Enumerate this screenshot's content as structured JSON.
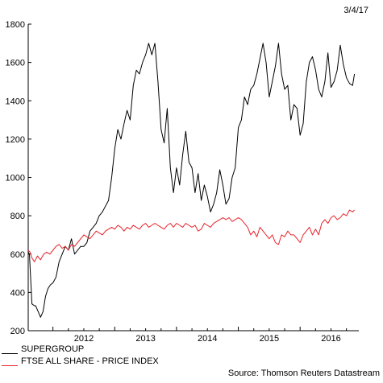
{
  "date_label": "3/4/17",
  "source_label": "Source: Thomson Reuters Datastream",
  "chart_data": {
    "type": "line",
    "title": "",
    "xlabel": "",
    "ylabel": "",
    "x_ticks": [
      "2012",
      "2013",
      "2014",
      "2015",
      "2016"
    ],
    "y_ticks": [
      200,
      400,
      600,
      800,
      1000,
      1200,
      1400,
      1600,
      1800
    ],
    "xlim": [
      2011.6,
      2016.95
    ],
    "ylim": [
      200,
      1800
    ],
    "grid": false,
    "legend_position": "bottom-left",
    "series": [
      {
        "name": "SUPERGROUP",
        "color": "#000000",
        "x": [
          2011.6,
          2011.62,
          2011.66,
          2011.7,
          2011.72,
          2011.76,
          2011.8,
          2011.84,
          2011.88,
          2011.92,
          2011.96,
          2012.0,
          2012.05,
          2012.1,
          2012.15,
          2012.2,
          2012.25,
          2012.3,
          2012.35,
          2012.4,
          2012.45,
          2012.5,
          2012.55,
          2012.6,
          2012.65,
          2012.7,
          2012.75,
          2012.8,
          2012.85,
          2012.9,
          2012.95,
          2013.0,
          2013.05,
          2013.1,
          2013.15,
          2013.2,
          2013.25,
          2013.3,
          2013.35,
          2013.4,
          2013.45,
          2013.5,
          2013.55,
          2013.6,
          2013.65,
          2013.7,
          2013.75,
          2013.8,
          2013.85,
          2013.9,
          2013.95,
          2014.0,
          2014.05,
          2014.1,
          2014.15,
          2014.2,
          2014.25,
          2014.3,
          2014.35,
          2014.4,
          2014.45,
          2014.5,
          2014.55,
          2014.6,
          2014.65,
          2014.7,
          2014.75,
          2014.8,
          2014.85,
          2014.9,
          2014.95,
          2015.0,
          2015.05,
          2015.1,
          2015.15,
          2015.2,
          2015.25,
          2015.3,
          2015.35,
          2015.4,
          2015.45,
          2015.5,
          2015.55,
          2015.6,
          2015.65,
          2015.7,
          2015.75,
          2015.8,
          2015.85,
          2015.9,
          2015.95,
          2016.0,
          2016.05,
          2016.1,
          2016.15,
          2016.2,
          2016.25,
          2016.3,
          2016.35,
          2016.4,
          2016.45,
          2016.5,
          2016.55,
          2016.6,
          2016.65,
          2016.7,
          2016.75,
          2016.8,
          2016.85,
          2016.88
        ],
        "y": [
          610,
          600,
          340,
          330,
          330,
          300,
          270,
          300,
          380,
          420,
          440,
          450,
          480,
          560,
          600,
          640,
          620,
          680,
          600,
          620,
          640,
          640,
          660,
          720,
          740,
          760,
          800,
          820,
          850,
          880,
          1000,
          1150,
          1250,
          1200,
          1280,
          1350,
          1300,
          1480,
          1560,
          1540,
          1600,
          1640,
          1700,
          1640,
          1700,
          1500,
          1250,
          1180,
          1360,
          1050,
          920,
          1050,
          960,
          1120,
          1240,
          1080,
          1050,
          920,
          1020,
          880,
          960,
          900,
          820,
          860,
          920,
          1040,
          960,
          860,
          890,
          1000,
          1050,
          1260,
          1300,
          1420,
          1380,
          1460,
          1480,
          1540,
          1620,
          1700,
          1600,
          1420,
          1500,
          1580,
          1700,
          1540,
          1460,
          1480,
          1300,
          1380,
          1360,
          1220,
          1280,
          1500,
          1600,
          1630,
          1560,
          1460,
          1420,
          1500,
          1650,
          1470,
          1500,
          1560,
          1690,
          1590,
          1520,
          1490,
          1480,
          1540
        ]
      },
      {
        "name": "FTSE ALL SHARE - PRICE INDEX",
        "color": "#e8232a",
        "x": [
          2011.6,
          2011.63,
          2011.66,
          2011.7,
          2011.75,
          2011.8,
          2011.85,
          2011.9,
          2011.95,
          2012.0,
          2012.05,
          2012.1,
          2012.15,
          2012.2,
          2012.25,
          2012.3,
          2012.35,
          2012.4,
          2012.45,
          2012.5,
          2012.55,
          2012.6,
          2012.65,
          2012.7,
          2012.75,
          2012.8,
          2012.85,
          2012.9,
          2012.95,
          2013.0,
          2013.05,
          2013.1,
          2013.15,
          2013.2,
          2013.25,
          2013.3,
          2013.35,
          2013.4,
          2013.45,
          2013.5,
          2013.55,
          2013.6,
          2013.65,
          2013.7,
          2013.75,
          2013.8,
          2013.85,
          2013.9,
          2013.95,
          2014.0,
          2014.05,
          2014.1,
          2014.15,
          2014.2,
          2014.25,
          2014.3,
          2014.35,
          2014.4,
          2014.45,
          2014.5,
          2014.55,
          2014.6,
          2014.65,
          2014.7,
          2014.75,
          2014.8,
          2014.85,
          2014.9,
          2014.95,
          2015.0,
          2015.05,
          2015.1,
          2015.15,
          2015.2,
          2015.25,
          2015.3,
          2015.35,
          2015.4,
          2015.45,
          2015.5,
          2015.55,
          2015.6,
          2015.65,
          2015.7,
          2015.75,
          2015.8,
          2015.85,
          2015.9,
          2015.95,
          2016.0,
          2016.05,
          2016.1,
          2016.15,
          2016.2,
          2016.25,
          2016.3,
          2016.35,
          2016.4,
          2016.45,
          2016.5,
          2016.55,
          2016.6,
          2016.65,
          2016.7,
          2016.75,
          2016.8,
          2016.85,
          2016.88
        ],
        "y": [
          620,
          610,
          580,
          560,
          590,
          570,
          600,
          610,
          600,
          620,
          640,
          650,
          630,
          640,
          620,
          650,
          640,
          660,
          680,
          700,
          690,
          680,
          700,
          720,
          710,
          700,
          720,
          730,
          740,
          730,
          750,
          740,
          720,
          740,
          730,
          750,
          740,
          730,
          750,
          760,
          740,
          750,
          760,
          750,
          740,
          730,
          750,
          760,
          740,
          760,
          750,
          740,
          760,
          750,
          740,
          750,
          720,
          730,
          760,
          750,
          740,
          760,
          770,
          780,
          790,
          780,
          790,
          770,
          780,
          790,
          780,
          760,
          740,
          700,
          720,
          690,
          740,
          720,
          700,
          680,
          700,
          660,
          650,
          700,
          690,
          720,
          700,
          700,
          680,
          660,
          700,
          720,
          740,
          700,
          730,
          700,
          760,
          780,
          760,
          790,
          800,
          780,
          790,
          810,
          800,
          830,
          820,
          830
        ]
      }
    ]
  }
}
